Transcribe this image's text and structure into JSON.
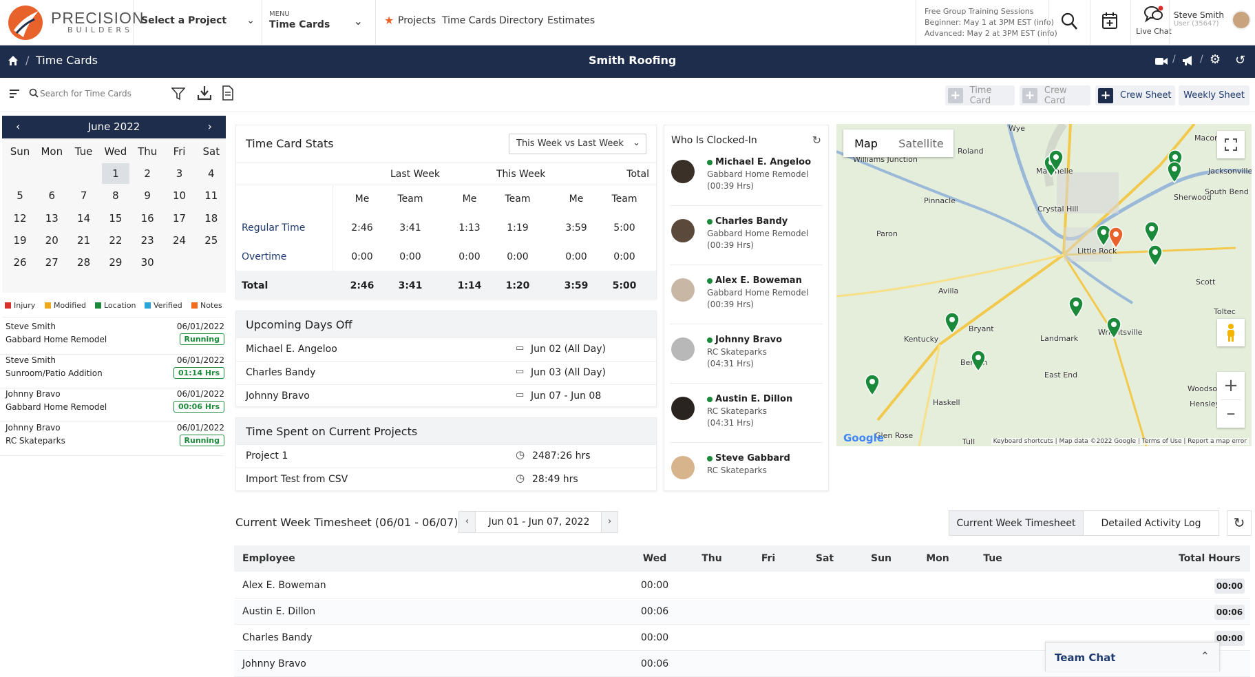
{
  "header": {
    "brand_name": "PRECISION",
    "brand_sub": "BUILDERS",
    "project_select": "Select a Project",
    "menu_label": "MENU",
    "menu_value": "Time Cards",
    "nav_links": [
      "Projects",
      "Time Cards",
      "Directory",
      "Estimates"
    ],
    "training": [
      "Free Group Training Sessions",
      "Beginner: May 1 at 3PM EST (info)",
      "Advanced: May 2 at 3PM EST (info)"
    ],
    "live_chat": "Live Chat",
    "user_name": "Steve Smith",
    "user_id": "User (35647)"
  },
  "navbar": {
    "breadcrumb": "Time Cards",
    "company": "Smith Roofing"
  },
  "toolbar": {
    "search_placeholder": "Search for Time Cards",
    "buttons": [
      "Time Card",
      "Crew Card",
      "Crew Sheet",
      "Weekly Sheet"
    ]
  },
  "calendar": {
    "month": "June 2022",
    "weekdays": [
      "Sun",
      "Mon",
      "Tue",
      "Wed",
      "Thu",
      "Fri",
      "Sat"
    ],
    "days": [
      "1",
      "2",
      "3",
      "4",
      "5",
      "6",
      "7",
      "8",
      "9",
      "10",
      "11",
      "12",
      "13",
      "14",
      "15",
      "16",
      "17",
      "18",
      "19",
      "20",
      "21",
      "22",
      "23",
      "24",
      "25",
      "26",
      "27",
      "28",
      "29",
      "30"
    ],
    "selected": "1"
  },
  "legend": [
    {
      "label": "Injury",
      "color": "#d9302c"
    },
    {
      "label": "Modified",
      "color": "#f0a81c"
    },
    {
      "label": "Location",
      "color": "#1a8a3a"
    },
    {
      "label": "Verified",
      "color": "#2aa3d9"
    },
    {
      "label": "Notes",
      "color": "#f26a1b"
    }
  ],
  "timecards": [
    {
      "name": "Steve Smith",
      "date": "06/01/2022",
      "project": "Gabbard Home Remodel",
      "status": "Running"
    },
    {
      "name": "Steve Smith",
      "date": "06/01/2022",
      "project": "Sunroom/Patio Addition",
      "status": "01:14 Hrs"
    },
    {
      "name": "Johnny Bravo",
      "date": "06/01/2022",
      "project": "Gabbard Home Remodel",
      "status": "00:06 Hrs"
    },
    {
      "name": "Johnny Bravo",
      "date": "06/01/2022",
      "project": "RC Skateparks",
      "status": "Running"
    }
  ],
  "stats": {
    "title": "Time Card Stats",
    "period": "This Week vs Last Week",
    "groups": [
      "Last Week",
      "This Week",
      "Total"
    ],
    "sub": [
      "Me",
      "Team",
      "Me",
      "Team",
      "Me",
      "Team"
    ],
    "rows": [
      {
        "label": "Regular Time",
        "values": [
          "2:46",
          "3:41",
          "1:13",
          "1:19",
          "3:59",
          "5:00"
        ]
      },
      {
        "label": "Overtime",
        "values": [
          "0:00",
          "0:00",
          "0:00",
          "0:00",
          "0:00",
          "0:00"
        ]
      },
      {
        "label": "Total",
        "values": [
          "2:46",
          "3:41",
          "1:14",
          "1:20",
          "3:59",
          "5:00"
        ]
      }
    ]
  },
  "days_off": {
    "title": "Upcoming Days Off",
    "rows": [
      {
        "name": "Michael E. Angeloo",
        "date": "Jun 02 (All Day)"
      },
      {
        "name": "Charles Bandy",
        "date": "Jun 03 (All Day)"
      },
      {
        "name": "Johnny Bravo",
        "date": "Jun 07 - Jun 08"
      }
    ]
  },
  "time_spent": {
    "title": "Time Spent on Current Projects",
    "rows": [
      {
        "name": "Project 1",
        "hours": "2487:26 hrs"
      },
      {
        "name": "Import Test from CSV",
        "hours": "28:49 hrs"
      }
    ]
  },
  "clocked": {
    "title": "Who Is Clocked-In",
    "people": [
      {
        "name": "Michael E. Angeloo",
        "project": "Gabbard Home Remodel",
        "time": "(00:39 Hrs)"
      },
      {
        "name": "Charles Bandy",
        "project": "Gabbard Home Remodel",
        "time": "(00:39 Hrs)"
      },
      {
        "name": "Alex E. Boweman",
        "project": "Gabbard Home Remodel",
        "time": "(00:39 Hrs)"
      },
      {
        "name": "Johnny Bravo",
        "project": "RC Skateparks",
        "time": "(04:31 Hrs)"
      },
      {
        "name": "Austin E. Dillon",
        "project": "RC Skateparks",
        "time": "(04:31 Hrs)"
      },
      {
        "name": "Steve Gabbard",
        "project": "RC Skateparks",
        "time": ""
      }
    ]
  },
  "map": {
    "tabs": [
      "Map",
      "Satellite"
    ],
    "places": [
      "Wye",
      "Roland",
      "Macon",
      "Williams Junction",
      "Maumelle",
      "Jacksonville",
      "Pinnacle",
      "Sherwood",
      "South Bend",
      "Crystal Hill",
      "Paron",
      "Little Rock",
      "Scott",
      "Avilla",
      "Toltec",
      "Bryant",
      "Landmark",
      "Kentucky",
      "Wrightsville",
      "Benton",
      "East End",
      "Woodson",
      "Hensley",
      "Haskell",
      "Tull",
      "Glen Rose"
    ],
    "footer": "Keyboard shortcuts | Map data ©2022 Google | Terms of Use | Report a map error",
    "google": "Google"
  },
  "timesheet": {
    "title": "Current Week Timesheet (06/01 - 06/07)",
    "range": "Jun 01 - Jun 07, 2022",
    "tabs": [
      "Current Week Timesheet",
      "Detailed Activity Log"
    ],
    "columns": [
      "Employee",
      "Wed",
      "Thu",
      "Fri",
      "Sat",
      "Sun",
      "Mon",
      "Tue",
      "Total Hours"
    ],
    "rows": [
      {
        "name": "Alex E. Boweman",
        "wed": "00:00",
        "total": "00:00"
      },
      {
        "name": "Austin E. Dillon",
        "wed": "00:06",
        "total": "00:06"
      },
      {
        "name": "Charles Bandy",
        "wed": "00:00",
        "total": "00:00"
      },
      {
        "name": "Johnny Bravo",
        "wed": "00:06",
        "total": ""
      }
    ]
  },
  "team_chat": "Team Chat",
  "colors": {
    "navy": "#1e2d4b",
    "brand_orange": "#e8632b",
    "running_green": "#1a8a3a",
    "link_blue": "#1e3a6e"
  }
}
